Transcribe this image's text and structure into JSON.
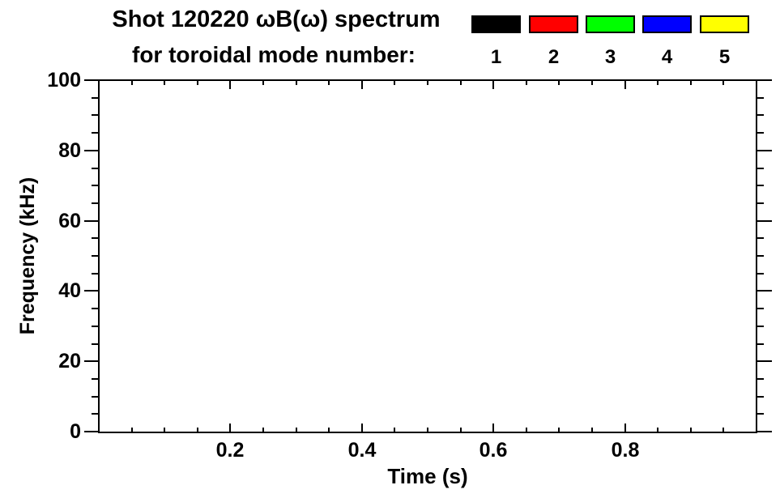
{
  "chart_data": {
    "type": "heatmap",
    "title": "Shot 120220 ωB(ω) spectrum",
    "subtitle": "for toroidal mode number:",
    "xlabel": "Time (s)",
    "ylabel": "Frequency (kHz)",
    "xlim": [
      0.0,
      1.0
    ],
    "ylim": [
      0,
      100
    ],
    "x_major_ticks": [
      0.2,
      0.4,
      0.6,
      0.8
    ],
    "x_major_tick_labels": [
      "0.2",
      "0.4",
      "0.6",
      "0.8"
    ],
    "x_minor_tick_interval": 0.05,
    "y_major_ticks": [
      0,
      20,
      40,
      60,
      80,
      100
    ],
    "y_major_tick_labels": [
      "0",
      "20",
      "40",
      "60",
      "80",
      "100"
    ],
    "y_minor_tick_interval": 5,
    "grid": false,
    "legend_position": "top-right",
    "legend": {
      "entries": [
        {
          "label": "1",
          "color": "#000000",
          "name": "toroidal-mode-1"
        },
        {
          "label": "2",
          "color": "#ff0000",
          "name": "toroidal-mode-2"
        },
        {
          "label": "3",
          "color": "#00ff00",
          "name": "toroidal-mode-3"
        },
        {
          "label": "4",
          "color": "#0000ff",
          "name": "toroidal-mode-4"
        },
        {
          "label": "5",
          "color": "#ffff00",
          "name": "toroidal-mode-5"
        }
      ]
    },
    "series": [],
    "values": [],
    "frame_color": "#000000",
    "background_color": "#ffffff",
    "text_color": "#000000"
  }
}
